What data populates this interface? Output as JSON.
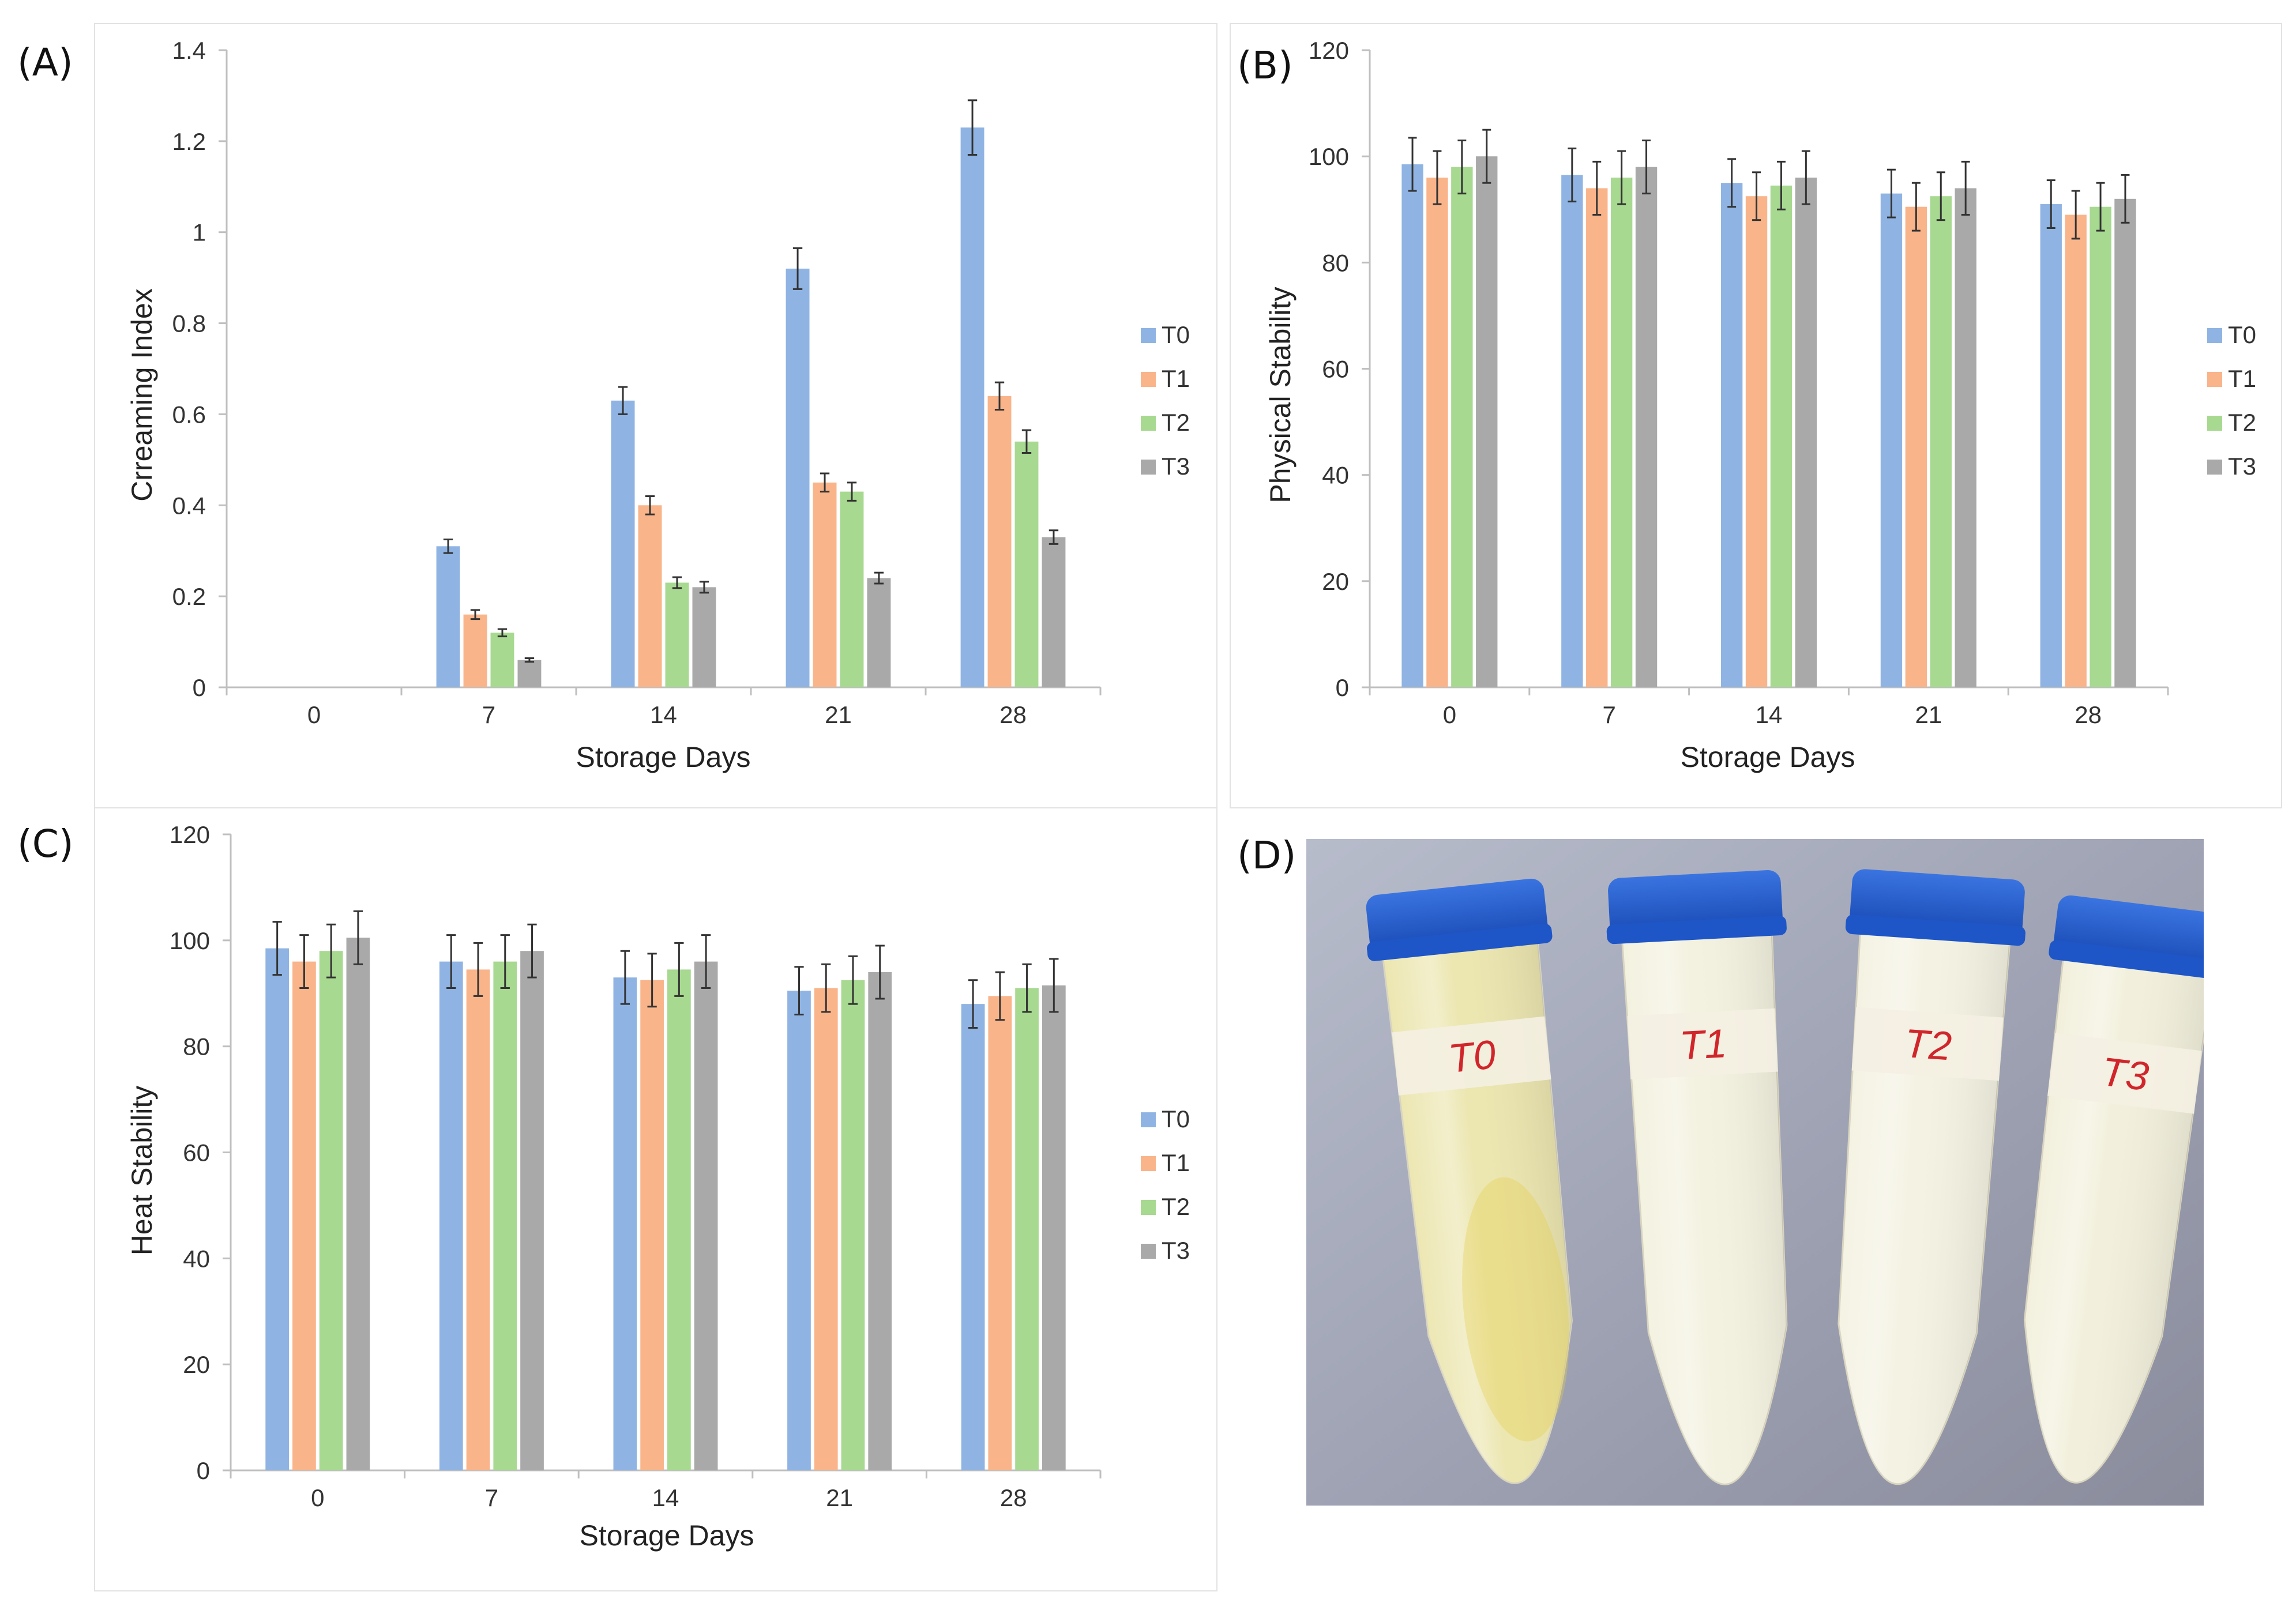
{
  "chart_data": [
    {
      "id": "A",
      "panel_label": "(A)",
      "type": "bar",
      "categories": [
        "0",
        "7",
        "14",
        "21",
        "28"
      ],
      "xlabel": "Storage Days",
      "ylabel": "Crreaming Index",
      "ylim": [
        0,
        1.4
      ],
      "yticks": [
        {
          "v": 0,
          "label": "0"
        },
        {
          "v": 0.2,
          "label": "0.2"
        },
        {
          "v": 0.4,
          "label": "0.4"
        },
        {
          "v": 0.6,
          "label": "0.6"
        },
        {
          "v": 0.8,
          "label": "0.8"
        },
        {
          "v": 1,
          "label": "1"
        },
        {
          "v": 1.2,
          "label": "1.2"
        },
        {
          "v": 1.4,
          "label": "1.4"
        }
      ],
      "legend_position": "right",
      "series": [
        {
          "name": "T0",
          "color": "#8fb4e3",
          "values": [
            0,
            0.31,
            0.63,
            0.92,
            1.23
          ],
          "errors": [
            0,
            0.015,
            0.03,
            0.045,
            0.06
          ]
        },
        {
          "name": "T1",
          "color": "#f9b48a",
          "values": [
            0,
            0.16,
            0.4,
            0.45,
            0.64
          ],
          "errors": [
            0,
            0.01,
            0.02,
            0.02,
            0.03
          ]
        },
        {
          "name": "T2",
          "color": "#a7d990",
          "values": [
            0,
            0.12,
            0.23,
            0.43,
            0.54
          ],
          "errors": [
            0,
            0.008,
            0.012,
            0.02,
            0.025
          ]
        },
        {
          "name": "T3",
          "color": "#a9a9a9",
          "values": [
            0,
            0.06,
            0.22,
            0.24,
            0.33
          ],
          "errors": [
            0,
            0.004,
            0.012,
            0.012,
            0.015
          ]
        }
      ]
    },
    {
      "id": "B",
      "panel_label": "(B)",
      "type": "bar",
      "categories": [
        "0",
        "7",
        "14",
        "21",
        "28"
      ],
      "xlabel": "Storage Days",
      "ylabel": "Physical Stability",
      "ylim": [
        0,
        120
      ],
      "yticks": [
        {
          "v": 0,
          "label": "0"
        },
        {
          "v": 20,
          "label": "20"
        },
        {
          "v": 40,
          "label": "40"
        },
        {
          "v": 60,
          "label": "60"
        },
        {
          "v": 80,
          "label": "80"
        },
        {
          "v": 100,
          "label": "100"
        },
        {
          "v": 120,
          "label": "120"
        }
      ],
      "legend_position": "right",
      "series": [
        {
          "name": "T0",
          "color": "#8fb4e3",
          "values": [
            98.5,
            96.5,
            95,
            93,
            91
          ],
          "errors": [
            5,
            5,
            4.5,
            4.5,
            4.5
          ]
        },
        {
          "name": "T1",
          "color": "#f9b48a",
          "values": [
            96,
            94,
            92.5,
            90.5,
            89
          ],
          "errors": [
            5,
            5,
            4.5,
            4.5,
            4.5
          ]
        },
        {
          "name": "T2",
          "color": "#a7d990",
          "values": [
            98,
            96,
            94.5,
            92.5,
            90.5
          ],
          "errors": [
            5,
            5,
            4.5,
            4.5,
            4.5
          ]
        },
        {
          "name": "T3",
          "color": "#a9a9a9",
          "values": [
            100,
            98,
            96,
            94,
            92
          ],
          "errors": [
            5,
            5,
            5,
            5,
            4.5
          ]
        }
      ]
    },
    {
      "id": "C",
      "panel_label": "(C)",
      "type": "bar",
      "categories": [
        "0",
        "7",
        "14",
        "21",
        "28"
      ],
      "xlabel": "Storage Days",
      "ylabel": "Heat Stability",
      "ylim": [
        0,
        120
      ],
      "yticks": [
        {
          "v": 0,
          "label": "0"
        },
        {
          "v": 20,
          "label": "20"
        },
        {
          "v": 40,
          "label": "40"
        },
        {
          "v": 60,
          "label": "60"
        },
        {
          "v": 80,
          "label": "80"
        },
        {
          "v": 100,
          "label": "100"
        },
        {
          "v": 120,
          "label": "120"
        }
      ],
      "legend_position": "right",
      "series": [
        {
          "name": "T0",
          "color": "#8fb4e3",
          "values": [
            98.5,
            96,
            93,
            90.5,
            88
          ],
          "errors": [
            5,
            5,
            5,
            4.5,
            4.5
          ]
        },
        {
          "name": "T1",
          "color": "#f9b48a",
          "values": [
            96,
            94.5,
            92.5,
            91,
            89.5
          ],
          "errors": [
            5,
            5,
            5,
            4.5,
            4.5
          ]
        },
        {
          "name": "T2",
          "color": "#a7d990",
          "values": [
            98,
            96,
            94.5,
            92.5,
            91
          ],
          "errors": [
            5,
            5,
            5,
            4.5,
            4.5
          ]
        },
        {
          "name": "T3",
          "color": "#a9a9a9",
          "values": [
            100.5,
            98,
            96,
            94,
            91.5
          ],
          "errors": [
            5,
            5,
            5,
            5,
            5
          ]
        }
      ]
    }
  ],
  "photo": {
    "panel_label": "(D)",
    "tube_labels": [
      "T0",
      "T1",
      "T2",
      "T3"
    ],
    "cap_color": "#1e56c8",
    "liquid_colors": [
      "#ece6b0",
      "#f3f1df",
      "#f4f2e2",
      "#f2f0dc"
    ]
  }
}
